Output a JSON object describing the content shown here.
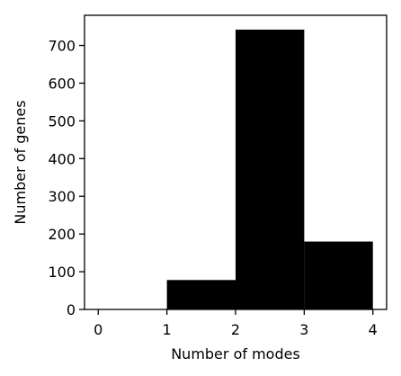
{
  "chart_data": {
    "type": "bar",
    "title": "",
    "xlabel": "Number of modes",
    "ylabel": "Number of genes",
    "bins": [
      {
        "x0": 0,
        "x1": 1,
        "value": 0
      },
      {
        "x0": 1,
        "x1": 2,
        "value": 78
      },
      {
        "x0": 2,
        "x1": 3,
        "value": 742
      },
      {
        "x0": 3,
        "x1": 4,
        "value": 180
      }
    ],
    "xlim": [
      -0.2,
      4.2
    ],
    "ylim": [
      0,
      780
    ],
    "xticks": [
      0,
      1,
      2,
      3,
      4
    ],
    "yticks": [
      0,
      100,
      200,
      300,
      400,
      500,
      600,
      700
    ],
    "bar_color": "#000000",
    "grid": false
  }
}
